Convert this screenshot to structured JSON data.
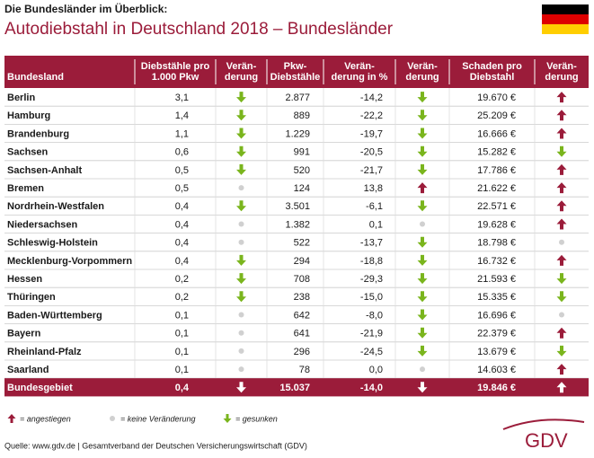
{
  "header": {
    "kicker": "Die Bundesländer im Überblick:",
    "title": "Autodiebstahl in Deutschland 2018 – Bundesländer"
  },
  "table": {
    "columns": [
      "Bundesland",
      "Diebstähle pro 1.000 Pkw",
      "Verän-derung",
      "Pkw-Diebstähle",
      "Verän-derung in %",
      "Verän-derung",
      "Schaden pro Diebstahl",
      "Verän-derung"
    ],
    "rows": [
      [
        "Berlin",
        "3,1",
        -1,
        "2.877",
        "-14,2",
        -1,
        "19.670 €",
        1
      ],
      [
        "Hamburg",
        "1,4",
        -1,
        "889",
        "-22,2",
        -1,
        "25.209 €",
        1
      ],
      [
        "Brandenburg",
        "1,1",
        -1,
        "1.229",
        "-19,7",
        -1,
        "16.666 €",
        1
      ],
      [
        "Sachsen",
        "0,6",
        -1,
        "991",
        "-20,5",
        -1,
        "15.282 €",
        -1
      ],
      [
        "Sachsen-Anhalt",
        "0,5",
        -1,
        "520",
        "-21,7",
        -1,
        "17.786 €",
        1
      ],
      [
        "Bremen",
        "0,5",
        0,
        "124",
        "13,8",
        1,
        "21.622 €",
        1
      ],
      [
        "Nordrhein-Westfalen",
        "0,4",
        -1,
        "3.501",
        "-6,1",
        -1,
        "22.571 €",
        1
      ],
      [
        "Niedersachsen",
        "0,4",
        0,
        "1.382",
        "0,1",
        0,
        "19.628 €",
        1
      ],
      [
        "Schleswig-Holstein",
        "0,4",
        0,
        "522",
        "-13,7",
        -1,
        "18.798 €",
        0
      ],
      [
        "Mecklenburg-Vorpommern",
        "0,4",
        -1,
        "294",
        "-18,8",
        -1,
        "16.732 €",
        1
      ],
      [
        "Hessen",
        "0,2",
        -1,
        "708",
        "-29,3",
        -1,
        "21.593 €",
        -1
      ],
      [
        "Thüringen",
        "0,2",
        -1,
        "238",
        "-15,0",
        -1,
        "15.335 €",
        -1
      ],
      [
        "Baden-Württemberg",
        "0,1",
        0,
        "642",
        "-8,0",
        -1,
        "16.696 €",
        0
      ],
      [
        "Bayern",
        "0,1",
        0,
        "641",
        "-21,9",
        -1,
        "22.379 €",
        1
      ],
      [
        "Rheinland-Pfalz",
        "0,1",
        0,
        "296",
        "-24,5",
        -1,
        "13.679 €",
        -1
      ],
      [
        "Saarland",
        "0,1",
        0,
        "78",
        "0,0",
        0,
        "14.603 €",
        1
      ]
    ],
    "total": [
      "Bundesgebiet",
      "0,4",
      -1,
      "15.037",
      "-14,0",
      -1,
      "19.846 €",
      1
    ]
  },
  "legend": [
    "= angestiegen",
    "= keine Veränderung",
    "= gesunken"
  ],
  "source": "Quelle: www.gdv.de | Gesamtverband der Deutschen Versicherungswirtschaft (GDV)",
  "logo": "GDV"
}
